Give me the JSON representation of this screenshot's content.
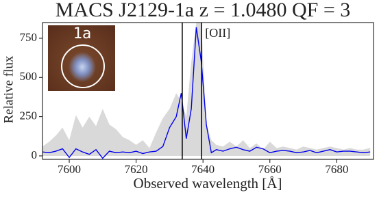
{
  "chart_data": {
    "type": "line",
    "title": "MACS J2129-1a z = 1.0480 QF = 3",
    "xlabel": "Observed wavelength  [Å]",
    "ylabel": "Relative flux",
    "x": [
      7592,
      7594,
      7596,
      7598,
      7600,
      7602,
      7604,
      7606,
      7608,
      7610,
      7612,
      7614,
      7616,
      7618,
      7620,
      7622,
      7624,
      7626,
      7628,
      7630,
      7632,
      7633.5,
      7635,
      7636.5,
      7638,
      7639.5,
      7641,
      7642.5,
      7644,
      7646,
      7648,
      7650,
      7652,
      7654,
      7656,
      7658,
      7660,
      7662,
      7664,
      7666,
      7668,
      7670,
      7672,
      7674,
      7676,
      7678,
      7680,
      7682,
      7684,
      7686,
      7688,
      7690
    ],
    "series": [
      {
        "kind": "area",
        "color": "#d9d9d9",
        "values": [
          60,
          90,
          130,
          180,
          100,
          260,
          180,
          250,
          190,
          300,
          200,
          170,
          120,
          100,
          70,
          100,
          50,
          150,
          240,
          300,
          400,
          350,
          250,
          600,
          850,
          850,
          200,
          100,
          70,
          60,
          90,
          60,
          100,
          50,
          80,
          40,
          90,
          50,
          60,
          50,
          40,
          60,
          50,
          40,
          50,
          60,
          50,
          40,
          50,
          40,
          40,
          50
        ]
      },
      {
        "kind": "line",
        "color": "#0000ee",
        "values": [
          25,
          20,
          30,
          45,
          -10,
          45,
          25,
          10,
          40,
          -15,
          30,
          20,
          25,
          20,
          30,
          15,
          25,
          30,
          60,
          180,
          250,
          400,
          110,
          300,
          820,
          600,
          200,
          20,
          40,
          30,
          45,
          55,
          40,
          30,
          55,
          45,
          20,
          30,
          35,
          30,
          20,
          25,
          35,
          20,
          30,
          40,
          25,
          30,
          30,
          25,
          20,
          25
        ]
      }
    ],
    "vlines": [
      7633.8,
      7639.6
    ],
    "annotation": "[OII]",
    "inset_label": "1a",
    "xlim": [
      7592,
      7691
    ],
    "ylim": [
      -22,
      850
    ],
    "xticks": [
      7600,
      7620,
      7640,
      7660,
      7680
    ],
    "yticks": [
      0,
      250,
      500,
      750
    ]
  }
}
